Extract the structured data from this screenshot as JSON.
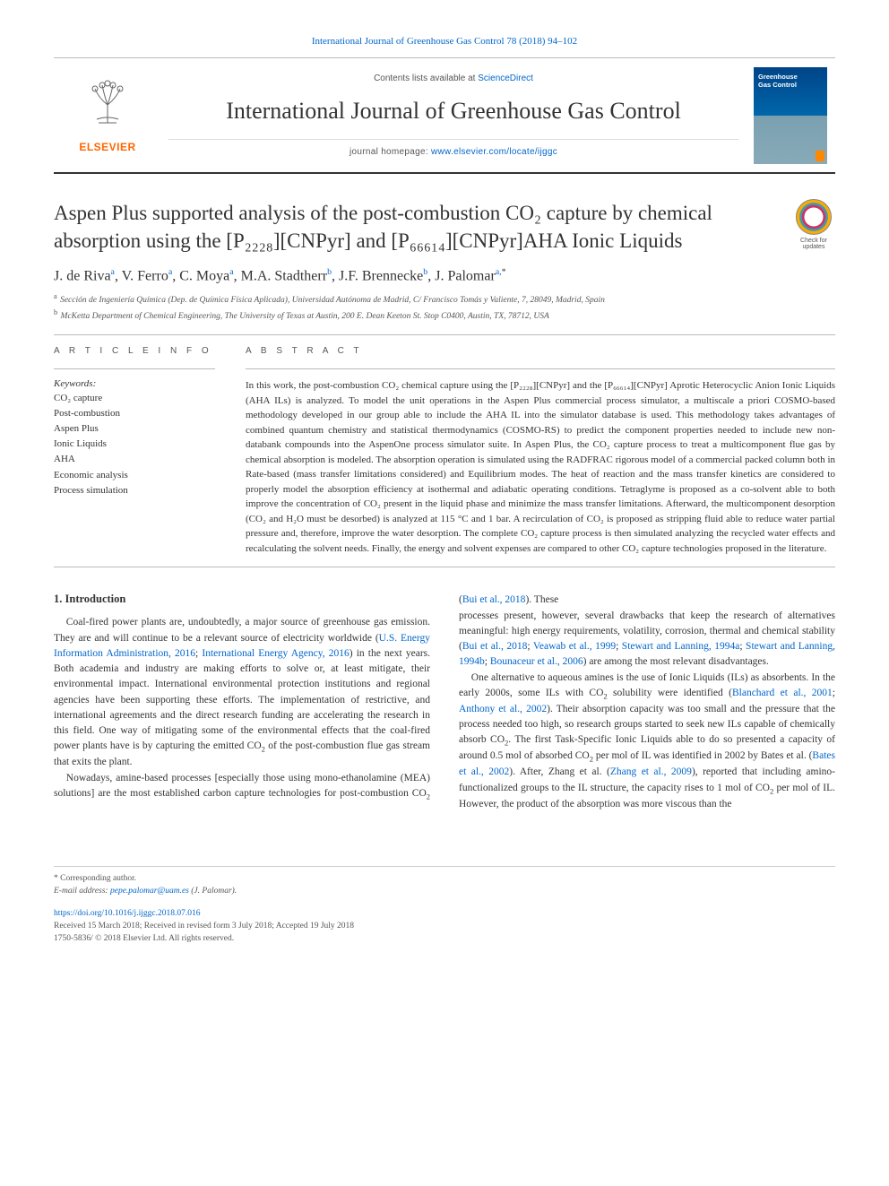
{
  "header": {
    "citation": "International Journal of Greenhouse Gas Control 78 (2018) 94–102",
    "contents_prefix": "Contents lists available at ",
    "contents_link": "ScienceDirect",
    "journal_name": "International Journal of Greenhouse Gas Control",
    "homepage_prefix": "journal homepage: ",
    "homepage_url": "www.elsevier.com/locate/ijggc",
    "elsevier_label": "ELSEVIER",
    "cover_title_line1": "Greenhouse",
    "cover_title_line2": "Gas Control"
  },
  "badge": {
    "line1": "Check for",
    "line2": "updates"
  },
  "title_parts": {
    "full": "Aspen Plus supported analysis of the post-combustion CO₂ capture by chemical absorption using the [P₂₂₂₈][CNPyr] and [P₆₆₆₁₄][CNPyr]AHA Ionic Liquids"
  },
  "authors_html": "J. de Riva<sup>a</sup>, V. Ferro<sup>a</sup>, C. Moya<sup>a</sup>, M.A. Stadtherr<sup>b</sup>, J.F. Brennecke<sup>b</sup>, J. Palomar<sup>a,</sup><sup class=\"corr-sup\">*</sup>",
  "affiliations": [
    {
      "label": "a",
      "text": "Sección de Ingeniería Química (Dep. de Química Física Aplicada), Universidad Autónoma de Madrid, C/ Francisco Tomás y Valiente, 7, 28049, Madrid, Spain"
    },
    {
      "label": "b",
      "text": "McKetta Department of Chemical Engineering, The University of Texas at Austin, 200 E. Dean Keeton St. Stop C0400, Austin, TX, 78712, USA"
    }
  ],
  "article_info": {
    "head": "A R T I C L E  I N F O",
    "keywords_label": "Keywords:",
    "keywords": [
      "CO₂ capture",
      "Post-combustion",
      "Aspen Plus",
      "Ionic Liquids",
      "AHA",
      "Economic analysis",
      "Process simulation"
    ]
  },
  "abstract": {
    "head": "A B S T R A C T",
    "text": "In this work, the post-combustion CO₂ chemical capture using the [P₂₂₂₈][CNPyr] and the [P₆₆₆₁₄][CNPyr] Aprotic Heterocyclic Anion Ionic Liquids (AHA ILs) is analyzed. To model the unit operations in the Aspen Plus commercial process simulator, a multiscale a priori COSMO-based methodology developed in our group able to include the AHA IL into the simulator database is used. This methodology takes advantages of combined quantum chemistry and statistical thermodynamics (COSMO-RS) to predict the component properties needed to include new non-databank compounds into the AspenOne process simulator suite. In Aspen Plus, the CO₂ capture process to treat a multicomponent flue gas by chemical absorption is modeled. The absorption operation is simulated using the RADFRAC rigorous model of a commercial packed column both in Rate-based (mass transfer limitations considered) and Equilibrium modes. The heat of reaction and the mass transfer kinetics are considered to properly model the absorption efficiency at isothermal and adiabatic operating conditions. Tetraglyme is proposed as a co-solvent able to both improve the concentration of CO₂ present in the liquid phase and minimize the mass transfer limitations. Afterward, the multicomponent desorption (CO₂ and H₂O must be desorbed) is analyzed at 115 °C and 1 bar. A recirculation of CO₂ is proposed as stripping fluid able to reduce water partial pressure and, therefore, improve the water desorption. The complete CO₂ capture process is then simulated analyzing the recycled water effects and recalculating the solvent needs. Finally, the energy and solvent expenses are compared to other CO₂ capture technologies proposed in the literature."
  },
  "body": {
    "intro_heading": "1. Introduction",
    "p1_html": "Coal-fired power plants are, undoubtedly, a major source of greenhouse gas emission. They are and will continue to be a relevant source of electricity worldwide (<a href='#' data-interactable='true'>U.S. Energy Information Administration, 2016</a>; <a href='#' data-interactable='true'>International Energy Agency, 2016</a>) in the next years. Both academia and industry are making efforts to solve or, at least mitigate, their environmental impact. International environmental protection institutions and regional agencies have been supporting these efforts. The implementation of restrictive, and international agreements and the direct research funding are accelerating the research in this field. One way of mitigating some of the environmental effects that the coal-fired power plants have is by capturing the emitted CO<sub>2</sub> of the post-combustion flue gas stream that exits the plant.",
    "p2_html": "Nowadays, amine-based processes [especially those using mono-ethanolamine (MEA) solutions] are the most established carbon capture technologies for post-combustion CO<sub>2</sub> (<a href='#' data-interactable='true'>Bui et al., 2018</a>). These",
    "p3_html": "processes present, however, several drawbacks that keep the research of alternatives meaningful: high energy requirements, volatility, corrosion, thermal and chemical stability (<a href='#' data-interactable='true'>Bui et al., 2018</a>; <a href='#' data-interactable='true'>Veawab et al., 1999</a>; <a href='#' data-interactable='true'>Stewart and Lanning, 1994a</a>; <a href='#' data-interactable='true'>Stewart and Lanning, 1994b</a>; <a href='#' data-interactable='true'>Bounaceur et al., 2006</a>) are among the most relevant disadvantages.",
    "p4_html": "One alternative to aqueous amines is the use of Ionic Liquids (ILs) as absorbents. In the early 2000s, some ILs with CO<sub>2</sub> solubility were identified (<a href='#' data-interactable='true'>Blanchard et al., 2001</a>; <a href='#' data-interactable='true'>Anthony et al., 2002</a>). Their absorption capacity was too small and the pressure that the process needed too high, so research groups started to seek new ILs capable of chemically absorb CO<sub>2</sub>. The first Task-Specific Ionic Liquids able to do so presented a capacity of around 0.5 mol of absorbed CO<sub>2</sub> per mol of IL was identified in 2002 by Bates et al. (<a href='#' data-interactable='true'>Bates et al., 2002</a>). After, Zhang et al. (<a href='#' data-interactable='true'>Zhang et al., 2009</a>), reported that including amino-functionalized groups to the IL structure, the capacity rises to 1 mol of CO<sub>2</sub> per mol of IL. However, the product of the absorption was more viscous than the"
  },
  "footer": {
    "corr_label": "* Corresponding author.",
    "email_label": "E-mail address: ",
    "email": "pepe.palomar@uam.es",
    "email_owner": " (J. Palomar).",
    "doi_url": "https://doi.org/10.1016/j.ijggc.2018.07.016",
    "received": "Received 15 March 2018; Received in revised form 3 July 2018; Accepted 19 July 2018",
    "copyright": "1750-5836/ © 2018 Elsevier Ltd. All rights reserved."
  },
  "colors": {
    "link": "#0066cc",
    "elsevier_orange": "#ff6600",
    "text": "#333333",
    "muted": "#555555",
    "rule": "#bbbbbb"
  }
}
